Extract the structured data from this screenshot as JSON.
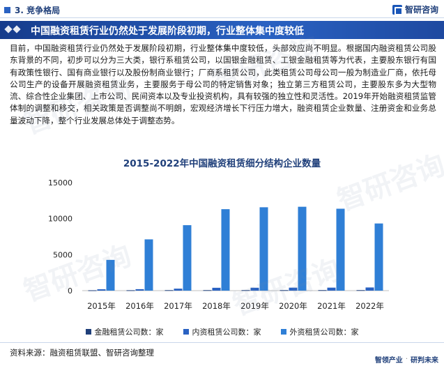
{
  "header": {
    "section": "3. 竞争格局",
    "logo_text": "智研咨询"
  },
  "title": "中国融资租赁行业仍然处于发展阶段初期，行业整体集中度较低",
  "body": "目前，中国融资租赁行业仍然处于发展阶段初期，行业整体集中度较低，头部效应尚不明显。根据国内融资租赁公司股东背景的不同，初步可以分为三大类，银行系租赁公司，以国银金融租赁、工银金融租赁等为代表，主要股东银行有国有政策性银行、国有商业银行以及股份制商业银行；厂商系租赁公司，此类租赁公司母公司一般为制造业厂商，依托母公司生产的设备开展融资租赁业务，主要服务于母公司的特定销售对象；独立第三方租赁公司，主要股东多为大型物流、综合性企业集团、上市公司、民间资本以及专业投资机构，具有较强的独立性和灵活性。2019年开始融资租赁监管体制的调整和移交，相关政策是否调整尚不明朗，宏观经济增长下行压力增大，融资租赁企业数量、注册资金和业务总量波动下降，整个行业发展总体处于调整态势。",
  "chart_data": {
    "type": "bar",
    "title": "2015-2022年中国融资租赁细分结构企业数量",
    "categories": [
      "2015年",
      "2016年",
      "2017年",
      "2018年",
      "2019年",
      "2020年",
      "2021年",
      "2022年"
    ],
    "series": [
      {
        "name": "金融租赁公司数：家",
        "color": "#1f3f7a",
        "values": [
          47,
          56,
          69,
          70,
          70,
          71,
          72,
          72
        ]
      },
      {
        "name": "内资租赁公司数：家",
        "color": "#2a62c2",
        "values": [
          190,
          204,
          276,
          397,
          403,
          414,
          417,
          441
        ]
      },
      {
        "name": "外资租赁公司数：家",
        "color": "#2f7fd6",
        "values": [
          4271,
          7120,
          9090,
          11311,
          11577,
          11647,
          11373,
          9326
        ]
      }
    ],
    "yticks": [
      0,
      5000,
      10000,
      15000
    ],
    "ylim": [
      0,
      15000
    ]
  },
  "footer": {
    "source": "资料来源：融资租赁联盟、智研咨询整理",
    "brand_left": "智领产业",
    "brand_right": "研判未来"
  },
  "watermark_text": "智研咨询"
}
